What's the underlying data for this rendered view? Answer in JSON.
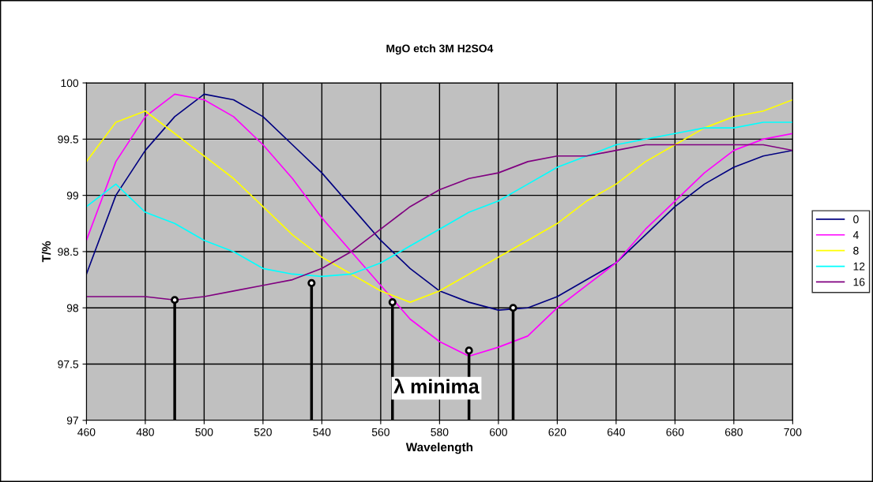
{
  "chart_data": {
    "type": "line",
    "title": "MgO etch 3M H2SO4",
    "xlabel": "Wavelength",
    "ylabel": "T/%",
    "xlim": [
      460,
      700
    ],
    "xticks": [
      460,
      480,
      500,
      520,
      540,
      560,
      580,
      600,
      620,
      640,
      660,
      680,
      700
    ],
    "ylim": [
      97,
      100
    ],
    "yticks": [
      97,
      97.5,
      98,
      98.5,
      99,
      99.5,
      100
    ],
    "grid": true,
    "legend": "right",
    "annotations": [
      "λ minima"
    ],
    "x": [
      460,
      470,
      480,
      490,
      500,
      510,
      520,
      530,
      540,
      550,
      560,
      570,
      580,
      590,
      600,
      610,
      620,
      630,
      640,
      650,
      660,
      670,
      680,
      690,
      700
    ],
    "series": [
      {
        "name": "0",
        "color": "#000080",
        "values": [
          98.3,
          99.0,
          99.4,
          99.7,
          99.9,
          99.85,
          99.7,
          99.45,
          99.2,
          98.9,
          98.6,
          98.35,
          98.15,
          98.05,
          97.98,
          98.0,
          98.1,
          98.25,
          98.4,
          98.65,
          98.9,
          99.1,
          99.25,
          99.35,
          99.4
        ]
      },
      {
        "name": "4",
        "color": "#ff00ff",
        "values": [
          98.6,
          99.3,
          99.7,
          99.9,
          99.85,
          99.7,
          99.45,
          99.15,
          98.8,
          98.5,
          98.2,
          97.9,
          97.7,
          97.57,
          97.65,
          97.75,
          98.0,
          98.2,
          98.4,
          98.7,
          98.95,
          99.2,
          99.4,
          99.5,
          99.55
        ]
      },
      {
        "name": "8",
        "color": "#ffff00",
        "values": [
          99.3,
          99.65,
          99.75,
          99.55,
          99.35,
          99.15,
          98.9,
          98.65,
          98.45,
          98.3,
          98.15,
          98.05,
          98.15,
          98.3,
          98.45,
          98.6,
          98.75,
          98.95,
          99.1,
          99.3,
          99.45,
          99.6,
          99.7,
          99.75,
          99.85
        ]
      },
      {
        "name": "12",
        "color": "#00ffff",
        "values": [
          98.9,
          99.1,
          98.85,
          98.75,
          98.6,
          98.5,
          98.35,
          98.3,
          98.28,
          98.3,
          98.4,
          98.55,
          98.7,
          98.85,
          98.95,
          99.1,
          99.25,
          99.35,
          99.45,
          99.5,
          99.55,
          99.6,
          99.6,
          99.65,
          99.65
        ]
      },
      {
        "name": "16",
        "color": "#800080",
        "values": [
          98.1,
          98.1,
          98.1,
          98.07,
          98.1,
          98.15,
          98.2,
          98.25,
          98.35,
          98.5,
          98.7,
          98.9,
          99.05,
          99.15,
          99.2,
          99.3,
          99.35,
          99.35,
          99.4,
          99.45,
          99.45,
          99.45,
          99.45,
          99.45,
          99.4
        ]
      },
      {
        "type": "lollipop",
        "color": "#000000",
        "marker": "circle",
        "x": [
          490,
          536.5,
          564,
          590,
          605
        ],
        "values": [
          98.07,
          98.22,
          98.05,
          97.62,
          98.0
        ]
      }
    ]
  }
}
